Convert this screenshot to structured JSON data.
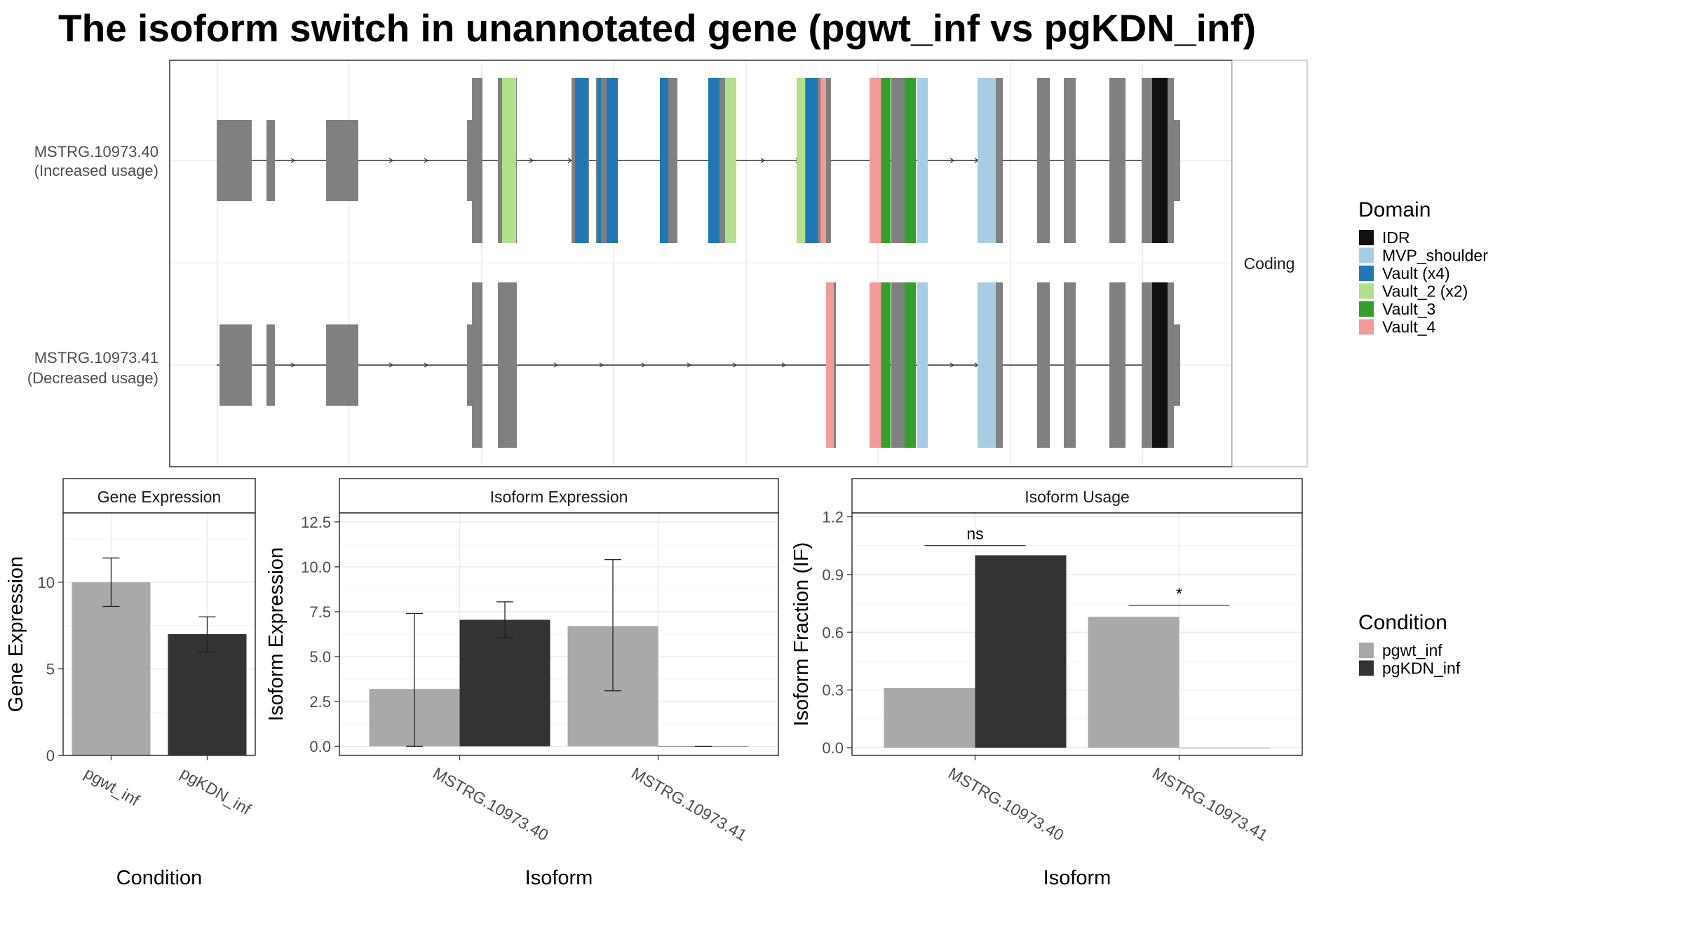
{
  "title": "The isoform switch in unannotated gene (pgwt_inf vs pgKDN_inf)",
  "colors": {
    "exon": "#808080",
    "pgwt_inf": "#a9a9a9",
    "pgKDN_inf": "#333333",
    "IDR": "#111111",
    "MVP_shoulder": "#a6cee3",
    "Vault": "#1f78b4",
    "Vault_2": "#b2df8a",
    "Vault_3": "#33a02c",
    "Vault_4": "#f49a9a"
  },
  "structure": {
    "strip_label": "Coding",
    "isoforms": [
      {
        "id": "MSTRG.10973.40",
        "note": "(Increased usage)"
      },
      {
        "id": "MSTRG.10973.41",
        "note": "(Decreased usage)"
      }
    ]
  },
  "domain_legend": {
    "title": "Domain",
    "items": [
      {
        "label": "IDR",
        "color_key": "IDR"
      },
      {
        "label": "MVP_shoulder",
        "color_key": "MVP_shoulder"
      },
      {
        "label": "Vault (x4)",
        "color_key": "Vault"
      },
      {
        "label": "Vault_2 (x2)",
        "color_key": "Vault_2"
      },
      {
        "label": "Vault_3",
        "color_key": "Vault_3"
      },
      {
        "label": "Vault_4",
        "color_key": "Vault_4"
      }
    ]
  },
  "condition_legend": {
    "title": "Condition",
    "items": [
      {
        "label": "pgwt_inf",
        "color_key": "pgwt_inf"
      },
      {
        "label": "pgKDN_inf",
        "color_key": "pgKDN_inf"
      }
    ]
  },
  "chart_data": [
    {
      "type": "bar",
      "title": "Gene Expression",
      "xlabel": "Condition",
      "ylabel": "Gene Expression",
      "ylim": [
        0,
        14
      ],
      "yticks": [
        0,
        5,
        10
      ],
      "categories": [
        "pgwt_inf",
        "pgKDN_inf"
      ],
      "values": [
        10.0,
        7.0
      ],
      "error_low": [
        8.6,
        6.0
      ],
      "error_high": [
        11.4,
        8.0
      ]
    },
    {
      "type": "bar",
      "title": "Isoform Expression",
      "xlabel": "Isoform",
      "ylabel": "Isoform Expression",
      "ylim": [
        -0.5,
        13.0
      ],
      "yticks": [
        "0.0",
        "2.5",
        "5.0",
        "7.5",
        "10.0",
        "12.5"
      ],
      "categories": [
        "MSTRG.10973.40",
        "MSTRG.10973.41"
      ],
      "series": [
        {
          "name": "pgwt_inf",
          "values": [
            3.2,
            6.7
          ],
          "error_low": [
            0.0,
            3.1
          ],
          "error_high": [
            7.4,
            10.4
          ]
        },
        {
          "name": "pgKDN_inf",
          "values": [
            7.05,
            0.0
          ],
          "error_low": [
            6.05,
            0.0
          ],
          "error_high": [
            8.05,
            0.0
          ]
        }
      ]
    },
    {
      "type": "bar",
      "title": "Isoform Usage",
      "xlabel": "Isoform",
      "ylabel": "Isoform Fraction (IF)",
      "ylim": [
        -0.04,
        1.22
      ],
      "yticks": [
        "0.0",
        "0.3",
        "0.6",
        "0.9",
        "1.2"
      ],
      "categories": [
        "MSTRG.10973.40",
        "MSTRG.10973.41"
      ],
      "series": [
        {
          "name": "pgwt_inf",
          "values": [
            0.31,
            0.68
          ]
        },
        {
          "name": "pgKDN_inf",
          "values": [
            1.0,
            0.0
          ]
        }
      ],
      "significance": [
        "ns",
        "*"
      ]
    }
  ]
}
